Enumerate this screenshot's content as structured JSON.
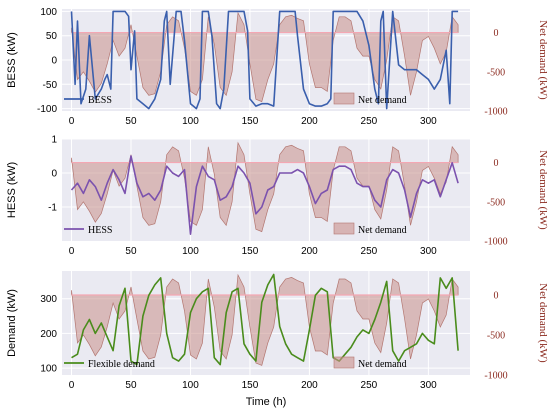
{
  "chart_data": [
    {
      "type": "line",
      "ylabel": "BESS (kW)",
      "ylabel_right": "Net demand (kW)",
      "xlim": [
        -8,
        335
      ],
      "ylim_left": [
        -105,
        105
      ],
      "ylim_right": [
        -1000,
        300
      ],
      "yticks_left": [
        "-100",
        "-50",
        "0",
        "50",
        "100"
      ],
      "yticks_right": [
        "-1000",
        "-500",
        "0"
      ],
      "xticks": [
        "0",
        "50",
        "100",
        "150",
        "200",
        "250",
        "300"
      ],
      "grid": true,
      "legend_placement": "bottom",
      "series": [
        {
          "name": "BESS",
          "color": "#3a5fad",
          "x": [
            0,
            3,
            5,
            8,
            12,
            15,
            20,
            25,
            28,
            30,
            33,
            35,
            40,
            45,
            48,
            50,
            53,
            55,
            60,
            65,
            70,
            75,
            78,
            80,
            83,
            88,
            92,
            95,
            100,
            105,
            108,
            110,
            115,
            118,
            122,
            125,
            128,
            132,
            135,
            140,
            145,
            148,
            150,
            155,
            160,
            165,
            170,
            175,
            180,
            185,
            188,
            190,
            195,
            200,
            205,
            210,
            215,
            218,
            220,
            225,
            230,
            235,
            240,
            245,
            250,
            255,
            258,
            260,
            262,
            265,
            270,
            275,
            280,
            285,
            290,
            295,
            300,
            305,
            310,
            315,
            318,
            320,
            325
          ],
          "values": [
            100,
            -50,
            80,
            -90,
            -60,
            50,
            -80,
            -60,
            -40,
            -30,
            -60,
            100,
            100,
            100,
            90,
            -20,
            60,
            -80,
            -90,
            -100,
            -80,
            -40,
            80,
            100,
            -50,
            100,
            100,
            40,
            -90,
            -100,
            -80,
            100,
            100,
            50,
            -90,
            -100,
            -60,
            100,
            100,
            100,
            100,
            60,
            -80,
            -95,
            -90,
            -90,
            -95,
            100,
            100,
            100,
            100,
            50,
            -60,
            -90,
            -95,
            -95,
            -90,
            -80,
            100,
            100,
            100,
            100,
            100,
            80,
            30,
            -60,
            -90,
            80,
            100,
            -100,
            100,
            -10,
            -20,
            -20,
            -20,
            -30,
            -40,
            -60,
            -40,
            20,
            -90,
            100,
            100
          ]
        },
        {
          "name": "Net demand",
          "color": "#c78b86",
          "x": [
            0,
            5,
            10,
            15,
            20,
            25,
            30,
            35,
            40,
            45,
            50,
            55,
            60,
            65,
            70,
            75,
            80,
            85,
            90,
            95,
            100,
            105,
            110,
            115,
            120,
            125,
            130,
            135,
            140,
            145,
            150,
            155,
            160,
            165,
            170,
            175,
            180,
            185,
            190,
            195,
            200,
            205,
            210,
            215,
            220,
            225,
            230,
            235,
            240,
            245,
            250,
            255,
            260,
            265,
            270,
            275,
            280,
            285,
            290,
            295,
            300,
            305,
            310,
            315,
            320,
            325
          ],
          "values": [
            60,
            -600,
            -500,
            -620,
            -760,
            -650,
            -400,
            -100,
            -300,
            -200,
            100,
            -300,
            -700,
            -800,
            -780,
            -500,
            100,
            200,
            150,
            -200,
            -750,
            -800,
            -600,
            200,
            -150,
            -700,
            -800,
            -500,
            250,
            100,
            -400,
            -850,
            -880,
            -600,
            -400,
            100,
            200,
            220,
            180,
            150,
            -400,
            -700,
            -700,
            -750,
            -100,
            200,
            200,
            150,
            -200,
            -300,
            -300,
            -600,
            -720,
            -350,
            200,
            150,
            -300,
            -800,
            -500,
            -100,
            -50,
            -200,
            -400,
            -250,
            200,
            100
          ]
        }
      ]
    },
    {
      "type": "line",
      "ylabel": "HESS (kW)",
      "ylabel_right": "Net demand (kW)",
      "xlim": [
        -8,
        335
      ],
      "ylim_left": [
        -2.0,
        1.0
      ],
      "ylim_right": [
        -1000,
        300
      ],
      "yticks_left": [
        "-1",
        "0",
        "1"
      ],
      "yticks_right": [
        "-1000",
        "-500",
        "0"
      ],
      "xticks": [
        "0",
        "50",
        "100",
        "150",
        "200",
        "250",
        "300"
      ],
      "grid": true,
      "legend_placement": "bottom",
      "series": [
        {
          "name": "HESS",
          "color": "#7b52ae",
          "x": [
            0,
            5,
            10,
            15,
            20,
            25,
            30,
            35,
            40,
            45,
            50,
            55,
            60,
            65,
            70,
            75,
            80,
            85,
            90,
            95,
            100,
            105,
            110,
            115,
            120,
            125,
            130,
            135,
            140,
            145,
            150,
            155,
            160,
            165,
            170,
            175,
            180,
            185,
            190,
            195,
            200,
            205,
            210,
            215,
            220,
            225,
            230,
            235,
            240,
            245,
            250,
            255,
            260,
            265,
            270,
            275,
            280,
            285,
            290,
            295,
            300,
            305,
            310,
            315,
            320,
            325
          ],
          "values": [
            -0.5,
            -0.3,
            -0.6,
            -0.2,
            -0.4,
            -0.8,
            -0.3,
            0.1,
            -0.2,
            -0.6,
            0.5,
            -0.3,
            -0.7,
            -0.6,
            -0.8,
            -0.5,
            0.2,
            0.0,
            -0.1,
            0.1,
            -1.8,
            -0.4,
            0.2,
            -0.1,
            -0.2,
            -0.8,
            -0.7,
            -0.4,
            0.2,
            0.0,
            -0.3,
            -1.2,
            -1.0,
            -0.5,
            -0.4,
            0.0,
            0.0,
            0.0,
            0.1,
            0.0,
            -0.4,
            -0.9,
            -0.6,
            -0.5,
            0.1,
            0.2,
            0.2,
            0.1,
            -0.3,
            -0.4,
            -0.4,
            -0.8,
            -1.0,
            -0.2,
            0.1,
            0.0,
            -0.5,
            -1.3,
            -0.6,
            -0.2,
            -0.3,
            -0.2,
            -0.7,
            -0.2,
            0.3,
            -0.3
          ]
        },
        {
          "name": "Net demand",
          "color": "#c78b86",
          "x": [
            0,
            5,
            10,
            15,
            20,
            25,
            30,
            35,
            40,
            45,
            50,
            55,
            60,
            65,
            70,
            75,
            80,
            85,
            90,
            95,
            100,
            105,
            110,
            115,
            120,
            125,
            130,
            135,
            140,
            145,
            150,
            155,
            160,
            165,
            170,
            175,
            180,
            185,
            190,
            195,
            200,
            205,
            210,
            215,
            220,
            225,
            230,
            235,
            240,
            245,
            250,
            255,
            260,
            265,
            270,
            275,
            280,
            285,
            290,
            295,
            300,
            305,
            310,
            315,
            320,
            325
          ],
          "values": [
            60,
            -600,
            -500,
            -620,
            -760,
            -650,
            -400,
            -100,
            -300,
            -200,
            100,
            -300,
            -700,
            -800,
            -780,
            -500,
            100,
            200,
            150,
            -200,
            -750,
            -800,
            -600,
            200,
            -150,
            -700,
            -800,
            -500,
            250,
            100,
            -400,
            -850,
            -880,
            -600,
            -400,
            100,
            200,
            220,
            180,
            150,
            -400,
            -700,
            -700,
            -750,
            -100,
            200,
            200,
            150,
            -200,
            -300,
            -300,
            -600,
            -720,
            -350,
            200,
            150,
            -300,
            -800,
            -500,
            -100,
            -50,
            -200,
            -400,
            -250,
            200,
            100
          ]
        }
      ]
    },
    {
      "type": "line",
      "ylabel": "Demand (kW)",
      "ylabel_right": "Net demand (kW)",
      "xlabel": "Time (h)",
      "xlim": [
        -8,
        335
      ],
      "ylim_left": [
        80,
        380
      ],
      "ylim_right": [
        -1000,
        300
      ],
      "yticks_left": [
        "100",
        "200",
        "300"
      ],
      "yticks_right": [
        "-1000",
        "-500",
        "0"
      ],
      "xticks": [
        "0",
        "50",
        "100",
        "150",
        "200",
        "250",
        "300"
      ],
      "grid": true,
      "legend_placement": "bottom",
      "series": [
        {
          "name": "Flexible demand",
          "color": "#4a8c1c",
          "x": [
            0,
            5,
            10,
            15,
            20,
            25,
            30,
            35,
            40,
            45,
            50,
            55,
            60,
            65,
            70,
            75,
            80,
            85,
            90,
            95,
            100,
            105,
            110,
            115,
            120,
            125,
            130,
            135,
            140,
            145,
            150,
            155,
            160,
            165,
            170,
            175,
            180,
            185,
            190,
            195,
            200,
            205,
            210,
            215,
            220,
            225,
            230,
            235,
            240,
            245,
            250,
            255,
            260,
            265,
            270,
            275,
            280,
            285,
            290,
            295,
            300,
            305,
            310,
            315,
            320,
            325
          ],
          "values": [
            130,
            140,
            210,
            240,
            200,
            230,
            190,
            150,
            280,
            330,
            120,
            110,
            250,
            310,
            340,
            360,
            200,
            130,
            120,
            140,
            260,
            300,
            320,
            330,
            130,
            110,
            260,
            320,
            330,
            170,
            140,
            120,
            290,
            340,
            370,
            220,
            170,
            140,
            130,
            120,
            210,
            310,
            330,
            320,
            130,
            120,
            140,
            160,
            190,
            210,
            200,
            240,
            290,
            350,
            150,
            120,
            150,
            160,
            170,
            200,
            180,
            170,
            360,
            330,
            360,
            150
          ]
        },
        {
          "name": "Net demand",
          "color": "#c78b86",
          "x": [
            0,
            5,
            10,
            15,
            20,
            25,
            30,
            35,
            40,
            45,
            50,
            55,
            60,
            65,
            70,
            75,
            80,
            85,
            90,
            95,
            100,
            105,
            110,
            115,
            120,
            125,
            130,
            135,
            140,
            145,
            150,
            155,
            160,
            165,
            170,
            175,
            180,
            185,
            190,
            195,
            200,
            205,
            210,
            215,
            220,
            225,
            230,
            235,
            240,
            245,
            250,
            255,
            260,
            265,
            270,
            275,
            280,
            285,
            290,
            295,
            300,
            305,
            310,
            315,
            320,
            325
          ],
          "values": [
            60,
            -600,
            -500,
            -620,
            -760,
            -650,
            -400,
            -100,
            -300,
            -200,
            100,
            -300,
            -700,
            -800,
            -780,
            -500,
            100,
            200,
            150,
            -200,
            -750,
            -800,
            -600,
            200,
            -150,
            -700,
            -800,
            -500,
            250,
            100,
            -400,
            -850,
            -880,
            -600,
            -400,
            100,
            200,
            220,
            180,
            150,
            -400,
            -700,
            -700,
            -750,
            -100,
            200,
            200,
            150,
            -200,
            -300,
            -300,
            -600,
            -720,
            -350,
            200,
            150,
            -300,
            -800,
            -500,
            -100,
            -50,
            -200,
            -400,
            -250,
            200,
            100
          ]
        }
      ]
    }
  ]
}
